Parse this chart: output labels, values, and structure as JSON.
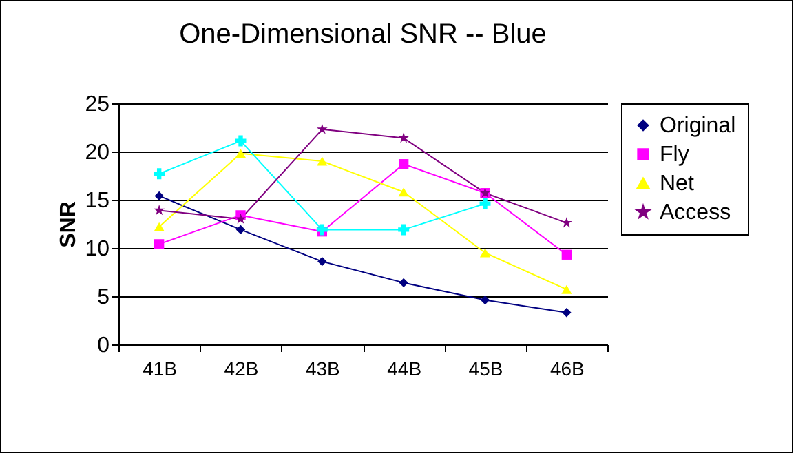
{
  "chart_data": {
    "type": "line",
    "title": "One-Dimensional SNR -- Blue",
    "ylabel": "SNR",
    "categories": [
      "41B",
      "42B",
      "43B",
      "44B",
      "45B",
      "46B"
    ],
    "series": [
      {
        "name": "Original",
        "color": "#000080",
        "marker": "diamond",
        "values": [
          15.4,
          11.9,
          8.6,
          6.4,
          4.6,
          3.3
        ]
      },
      {
        "name": "Fly",
        "color": "#ff00ff",
        "marker": "square",
        "values": [
          10.4,
          13.4,
          11.7,
          18.7,
          15.7,
          9.3
        ]
      },
      {
        "name": "Net",
        "color": "#ffff00",
        "marker": "triangle",
        "values": [
          12.2,
          19.8,
          19.0,
          15.8,
          9.5,
          5.7
        ]
      },
      {
        "color": "#00ffff",
        "marker": "cross",
        "values": [
          17.7,
          21.1,
          11.9,
          11.9,
          14.6,
          null
        ]
      },
      {
        "name": "Access",
        "color": "#800080",
        "marker": "star",
        "values": [
          13.9,
          13.0,
          22.3,
          21.4,
          15.7,
          12.6
        ]
      }
    ],
    "ylim": [
      0,
      25
    ],
    "yticks": [
      0,
      5,
      10,
      15,
      20,
      25
    ],
    "grid": "y",
    "legend": "right"
  }
}
